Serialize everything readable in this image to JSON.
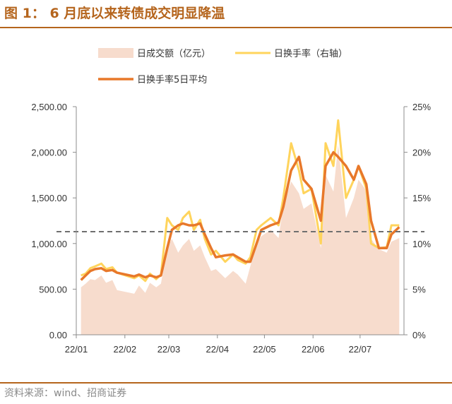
{
  "figure": {
    "title": "图 1：   6 月底以来转债成交明显降温",
    "source": "资料来源：wind、招商证券"
  },
  "colors": {
    "area": "#f7dccd",
    "turnover": "#ffd45c",
    "ma5": "#e8782a",
    "reference_line": "#6f6f6f",
    "axis": "#8c8c8c",
    "accent": "#b5651d"
  },
  "chart_data": {
    "type": "area+line",
    "title": "",
    "xlabel": "",
    "ylabel": "",
    "x_tick_labels": [
      "22/01",
      "22/02",
      "22/03",
      "22/04",
      "22/05",
      "22/06",
      "22/07"
    ],
    "y_left_ticks": [
      "0.00",
      "500.00",
      "1,000.00",
      "1,500.00",
      "2,000.00",
      "2,500.00"
    ],
    "y_right_ticks": [
      "0%",
      "5%",
      "10%",
      "15%",
      "20%",
      "25%"
    ],
    "y_left_range": [
      0,
      2500
    ],
    "y_right_range": [
      0,
      25
    ],
    "legend_position": "top",
    "grid": false,
    "x": [
      "2022-01-04",
      "2022-01-07",
      "2022-01-10",
      "2022-01-13",
      "2022-01-17",
      "2022-01-20",
      "2022-01-24",
      "2022-01-27",
      "2022-02-07",
      "2022-02-10",
      "2022-02-14",
      "2022-02-17",
      "2022-02-21",
      "2022-02-24",
      "2022-02-28",
      "2022-03-03",
      "2022-03-07",
      "2022-03-10",
      "2022-03-14",
      "2022-03-17",
      "2022-03-21",
      "2022-03-24",
      "2022-03-28",
      "2022-03-31",
      "2022-04-06",
      "2022-04-11",
      "2022-04-14",
      "2022-04-19",
      "2022-04-22",
      "2022-04-26",
      "2022-04-29",
      "2022-05-05",
      "2022-05-10",
      "2022-05-13",
      "2022-05-18",
      "2022-05-23",
      "2022-05-26",
      "2022-05-31",
      "2022-06-06",
      "2022-06-09",
      "2022-06-14",
      "2022-06-17",
      "2022-06-22",
      "2022-06-27",
      "2022-06-30",
      "2022-07-05",
      "2022-07-08",
      "2022-07-13",
      "2022-07-18",
      "2022-07-21",
      "2022-07-26"
    ],
    "series": [
      {
        "name": "日成交额（亿元）",
        "type": "area",
        "axis": "left",
        "values": [
          520,
          560,
          610,
          600,
          650,
          570,
          600,
          490,
          450,
          540,
          460,
          570,
          520,
          560,
          960,
          1050,
          900,
          980,
          1050,
          920,
          980,
          850,
          700,
          720,
          620,
          700,
          660,
          560,
          750,
          1000,
          1080,
          1150,
          1060,
          1420,
          1680,
          1550,
          1380,
          1440,
          950,
          1750,
          1570,
          2080,
          1280,
          1500,
          1700,
          1580,
          1050,
          940,
          900,
          1020,
          1060
        ]
      },
      {
        "name": "日换手率（右轴）",
        "type": "line",
        "axis": "right",
        "values": [
          6.5,
          6.7,
          7.3,
          7.5,
          7.8,
          7.2,
          7.4,
          6.8,
          6.2,
          6.5,
          5.9,
          6.7,
          6.1,
          6.6,
          12.8,
          12.0,
          11.5,
          12.8,
          13.5,
          11.5,
          12.6,
          10.5,
          8.8,
          9.2,
          8.0,
          8.8,
          8.2,
          7.8,
          8.5,
          11.5,
          12.0,
          12.8,
          12.0,
          15.0,
          21.0,
          18.0,
          15.5,
          16.0,
          10.0,
          21.0,
          18.5,
          23.5,
          15.0,
          17.0,
          18.5,
          16.0,
          10.0,
          9.5,
          9.6,
          12.0,
          12.0
        ]
      },
      {
        "name": "日换手率5日平均",
        "type": "line",
        "axis": "right",
        "values": [
          6.0,
          6.5,
          7.0,
          7.2,
          7.3,
          7.0,
          7.1,
          6.8,
          6.4,
          6.6,
          6.3,
          6.5,
          6.3,
          6.5,
          9.5,
          11.5,
          12.0,
          12.2,
          12.0,
          12.0,
          12.2,
          11.0,
          9.5,
          8.5,
          8.7,
          8.8,
          8.5,
          8.0,
          8.0,
          10.0,
          11.5,
          12.0,
          12.3,
          14.0,
          18.0,
          19.5,
          17.0,
          16.0,
          12.5,
          18.5,
          20.0,
          19.5,
          18.5,
          17.0,
          18.5,
          16.5,
          12.5,
          9.5,
          9.5,
          11.0,
          11.8
        ]
      }
    ],
    "reference_line": {
      "axis": "right",
      "value": 11.3
    }
  }
}
